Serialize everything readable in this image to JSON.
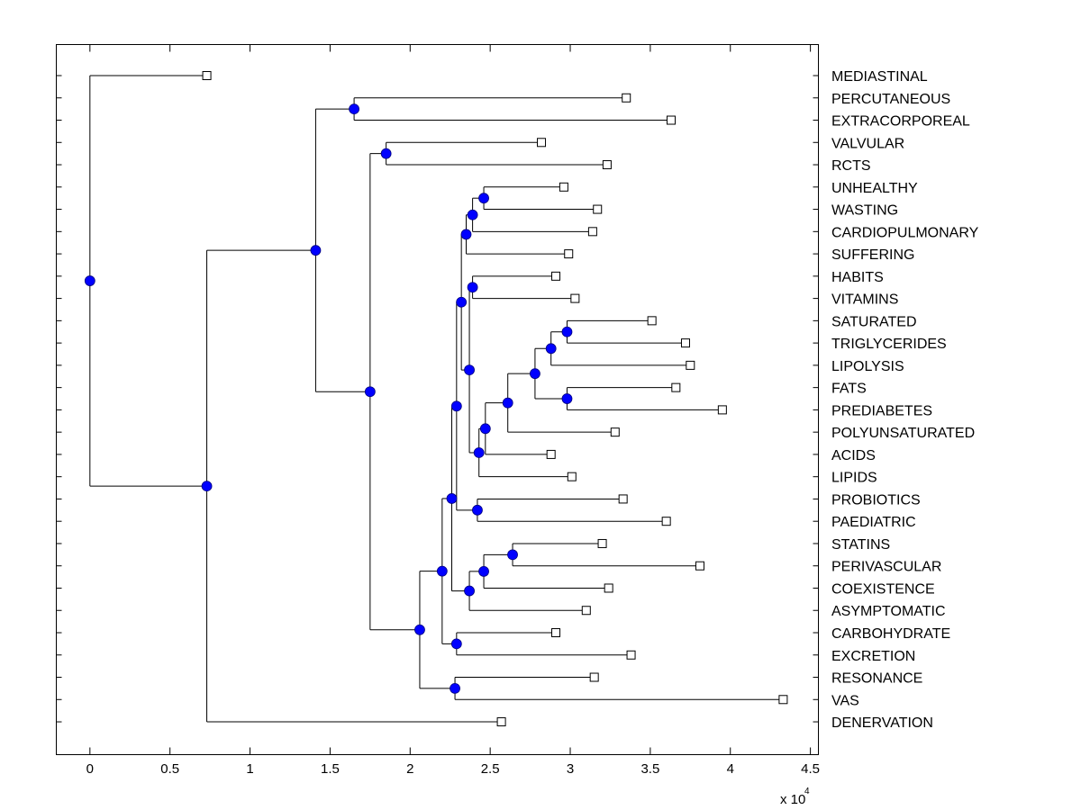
{
  "chart_data": {
    "type": "dendrogram",
    "orientation": "horizontal",
    "title": "",
    "xlabel": "",
    "ylabel": "",
    "x_multiplier": "x 10",
    "x_multiplier_exponent": "4",
    "xlim": [
      -0.21,
      4.55
    ],
    "xticks": [
      "0",
      "0.5",
      "1",
      "1.5",
      "2",
      "2.5",
      "3",
      "3.5",
      "4",
      "4.5"
    ],
    "xtick_values": [
      0,
      0.5,
      1,
      1.5,
      2,
      2.5,
      3,
      3.5,
      4,
      4.5
    ],
    "grid": false,
    "colors": {
      "node_fill": "#0000ff",
      "line": "#000000",
      "leaf_fill": "#ffffff"
    },
    "leaf_marker": "square",
    "node_marker": "circle",
    "tree": {
      "h": 0,
      "c": [
        {
          "leaf": "MEDIASTINAL",
          "h": 0.73
        },
        {
          "h": 0.73,
          "c": [
            {
              "h": 1.41,
              "c": [
                {
                  "h": 1.65,
                  "c": [
                    {
                      "leaf": "PERCUTANEOUS",
                      "h": 3.35
                    },
                    {
                      "leaf": "EXTRACORPOREAL",
                      "h": 3.63
                    }
                  ]
                },
                {
                  "h": 1.75,
                  "c": [
                    {
                      "h": 1.85,
                      "c": [
                        {
                          "leaf": "VALVULAR",
                          "h": 2.82
                        },
                        {
                          "leaf": "RCTS",
                          "h": 3.23
                        }
                      ]
                    },
                    {
                      "h": 2.06,
                      "c": [
                        {
                          "h": 2.2,
                          "c": [
                            {
                              "h": 2.26,
                              "c": [
                                {
                                  "h": 2.29,
                                  "c": [
                                    {
                                      "h": 2.32,
                                      "c": [
                                        {
                                          "h": 2.35,
                                          "c": [
                                            {
                                              "h": 2.39,
                                              "c": [
                                                {
                                                  "h": 2.46,
                                                  "c": [
                                                    {
                                                      "leaf": "UNHEALTHY",
                                                      "h": 2.96
                                                    },
                                                    {
                                                      "leaf": "WASTING",
                                                      "h": 3.17
                                                    }
                                                  ]
                                                },
                                                {
                                                  "leaf": "CARDIOPULMONARY",
                                                  "h": 3.14
                                                }
                                              ]
                                            },
                                            {
                                              "leaf": "SUFFERING",
                                              "h": 2.99
                                            }
                                          ]
                                        },
                                        {
                                          "h": 2.37,
                                          "c": [
                                            {
                                              "h": 2.39,
                                              "c": [
                                                {
                                                  "leaf": "HABITS",
                                                  "h": 2.91
                                                },
                                                {
                                                  "leaf": "VITAMINS",
                                                  "h": 3.03
                                                }
                                              ]
                                            },
                                            {
                                              "h": 2.43,
                                              "c": [
                                                {
                                                  "h": 2.47,
                                                  "c": [
                                                    {
                                                      "h": 2.61,
                                                      "c": [
                                                        {
                                                          "h": 2.78,
                                                          "c": [
                                                            {
                                                              "h": 2.88,
                                                              "c": [
                                                                {
                                                                  "h": 2.98,
                                                                  "c": [
                                                                    {
                                                                      "leaf": "SATURATED",
                                                                      "h": 3.51
                                                                    },
                                                                    {
                                                                      "leaf": "TRIGLYCERIDES",
                                                                      "h": 3.72
                                                                    }
                                                                  ]
                                                                },
                                                                {
                                                                  "leaf": "LIPOLYSIS",
                                                                  "h": 3.75
                                                                }
                                                              ]
                                                            },
                                                            {
                                                              "h": 2.98,
                                                              "c": [
                                                                {
                                                                  "leaf": "FATS",
                                                                  "h": 3.66
                                                                },
                                                                {
                                                                  "leaf": "PREDIABETES",
                                                                  "h": 3.95
                                                                }
                                                              ]
                                                            }
                                                          ]
                                                        },
                                                        {
                                                          "leaf": "POLYUNSATURATED",
                                                          "h": 3.28
                                                        }
                                                      ]
                                                    },
                                                    {
                                                      "leaf": "ACIDS",
                                                      "h": 2.88
                                                    }
                                                  ]
                                                },
                                                {
                                                  "leaf": "LIPIDS",
                                                  "h": 3.01
                                                }
                                              ]
                                            }
                                          ]
                                        }
                                      ]
                                    },
                                    {
                                      "h": 2.42,
                                      "c": [
                                        {
                                          "leaf": "PROBIOTICS",
                                          "h": 3.33
                                        },
                                        {
                                          "leaf": "PAEDIATRIC",
                                          "h": 3.6
                                        }
                                      ]
                                    }
                                  ]
                                },
                                {
                                  "h": 2.37,
                                  "c": [
                                    {
                                      "h": 2.46,
                                      "c": [
                                        {
                                          "h": 2.64,
                                          "c": [
                                            {
                                              "leaf": "STATINS",
                                              "h": 3.2
                                            },
                                            {
                                              "leaf": "PERIVASCULAR",
                                              "h": 3.81
                                            }
                                          ]
                                        },
                                        {
                                          "leaf": "COEXISTENCE",
                                          "h": 3.24
                                        }
                                      ]
                                    },
                                    {
                                      "leaf": "ASYMPTOMATIC",
                                      "h": 3.1
                                    }
                                  ]
                                }
                              ]
                            },
                            {
                              "h": 2.29,
                              "c": [
                                {
                                  "leaf": "CARBOHYDRATE",
                                  "h": 2.91
                                },
                                {
                                  "leaf": "EXCRETION",
                                  "h": 3.38
                                }
                              ]
                            }
                          ]
                        },
                        {
                          "h": 2.28,
                          "c": [
                            {
                              "leaf": "RESONANCE",
                              "h": 3.15
                            },
                            {
                              "leaf": "VAS",
                              "h": 4.33
                            }
                          ]
                        }
                      ]
                    }
                  ]
                }
              ]
            },
            {
              "leaf": "DENERVATION",
              "h": 2.57
            }
          ]
        }
      ]
    }
  }
}
